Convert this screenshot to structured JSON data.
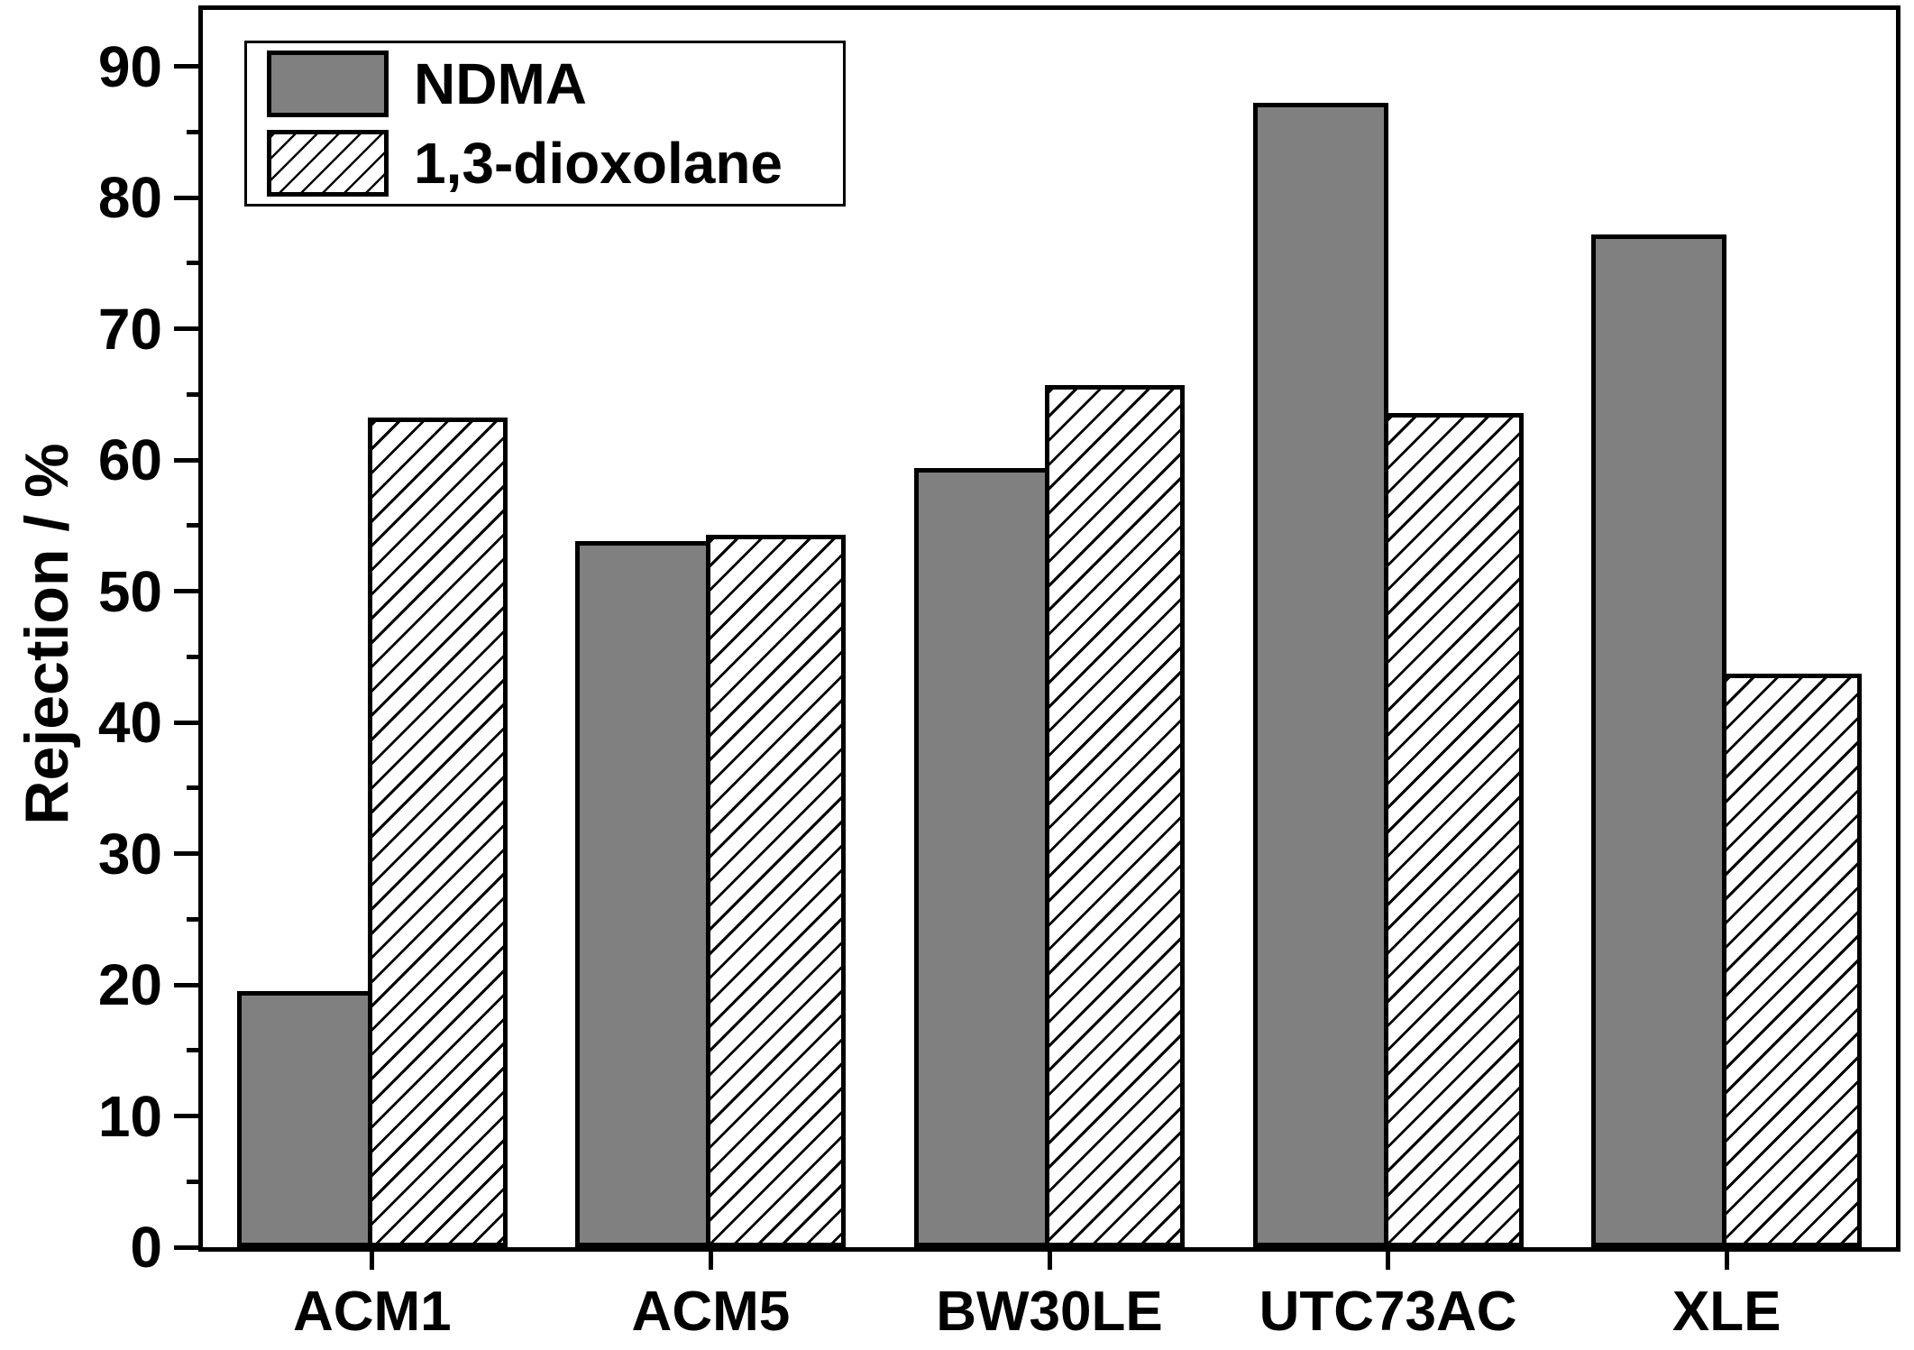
{
  "chart_data": {
    "type": "bar",
    "title": "",
    "xlabel": "",
    "ylabel": "Rejection / %",
    "categories": [
      "ACM1",
      "ACM5",
      "BW30LE",
      "UTC73AC",
      "XLE"
    ],
    "series": [
      {
        "name": "NDMA",
        "style": "solid",
        "fill": "#808080",
        "values": [
          19.5,
          53.8,
          59.4,
          87.2,
          77.2
        ]
      },
      {
        "name": "1,3-dioxolane",
        "style": "hatched",
        "fill": "#ffffff",
        "hatch": "diagonal-forward-slash",
        "values": [
          63.2,
          54.3,
          65.7,
          63.6,
          43.7
        ]
      }
    ],
    "ylim": [
      0,
      94.3
    ],
    "yticks": [
      0,
      10,
      20,
      30,
      40,
      50,
      60,
      70,
      80,
      90
    ],
    "minor_yticks": [
      5,
      15,
      25,
      35,
      45,
      55,
      65,
      75,
      85
    ],
    "grid": false,
    "legend_position": "top-left",
    "colors": {
      "bar_fill": "#808080",
      "outline": "#000000",
      "background": "#ffffff",
      "text": "#000000"
    }
  }
}
